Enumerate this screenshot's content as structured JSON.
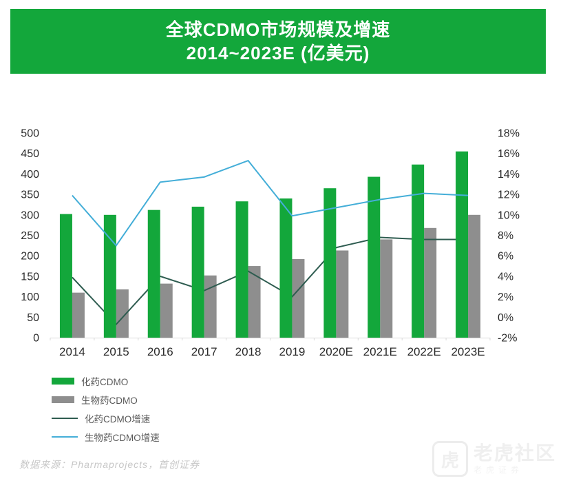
{
  "header": {
    "title_line1": "全球CDMO市场规模及增速",
    "title_line2": "2014~2023E (亿美元)",
    "background_color": "#13A73B",
    "text_color": "#FFFFFF"
  },
  "chart_data": {
    "type": "bar",
    "subtype": "combo bar+line, dual axis",
    "title": "全球CDMO市场规模及增速 2014~2023E (亿美元)",
    "categories": [
      "2014",
      "2015",
      "2016",
      "2017",
      "2018",
      "2019",
      "2020E",
      "2021E",
      "2022E",
      "2023E"
    ],
    "series": [
      {
        "name": "化药CDMO",
        "type": "bar",
        "axis": "left",
        "color": "#13A73B",
        "values": [
          302,
          300,
          312,
          320,
          333,
          340,
          365,
          393,
          423,
          455
        ]
      },
      {
        "name": "生物药CDMO",
        "type": "bar",
        "axis": "left",
        "color": "#8E8E8E",
        "values": [
          110,
          118,
          132,
          152,
          175,
          192,
          213,
          240,
          268,
          300
        ]
      },
      {
        "name": "化药CDMO增速",
        "type": "line",
        "axis": "right",
        "color": "#2E5C50",
        "values": [
          3.9,
          -0.7,
          4.0,
          2.6,
          4.5,
          2.0,
          6.8,
          7.8,
          7.6,
          7.6
        ]
      },
      {
        "name": "生物药CDMO增速",
        "type": "line",
        "axis": "right",
        "color": "#44AED8",
        "values": [
          11.9,
          7.0,
          13.2,
          13.7,
          15.3,
          9.9,
          10.7,
          11.5,
          12.1,
          11.9
        ]
      }
    ],
    "left_axis": {
      "min": 0,
      "max": 500,
      "ticks": [
        0,
        50,
        100,
        150,
        200,
        250,
        300,
        350,
        400,
        450,
        500
      ]
    },
    "right_axis": {
      "min": -2,
      "max": 18,
      "tick_labels": [
        "-2%",
        "0%",
        "2%",
        "4%",
        "6%",
        "8%",
        "10%",
        "12%",
        "14%",
        "16%",
        "18%"
      ]
    },
    "grid": false,
    "legend_position": "bottom-left",
    "draw_order": [
      1,
      2,
      0,
      3
    ],
    "axis_text_color": "#2b2b2b",
    "baseline_color": "#d9d9d9"
  },
  "source": {
    "text": "数据来源：Pharmaprojects，首创证券"
  },
  "watermark": {
    "logo_glyph": "虎",
    "text_large": "老虎社区",
    "text_small": "老虎证券"
  }
}
